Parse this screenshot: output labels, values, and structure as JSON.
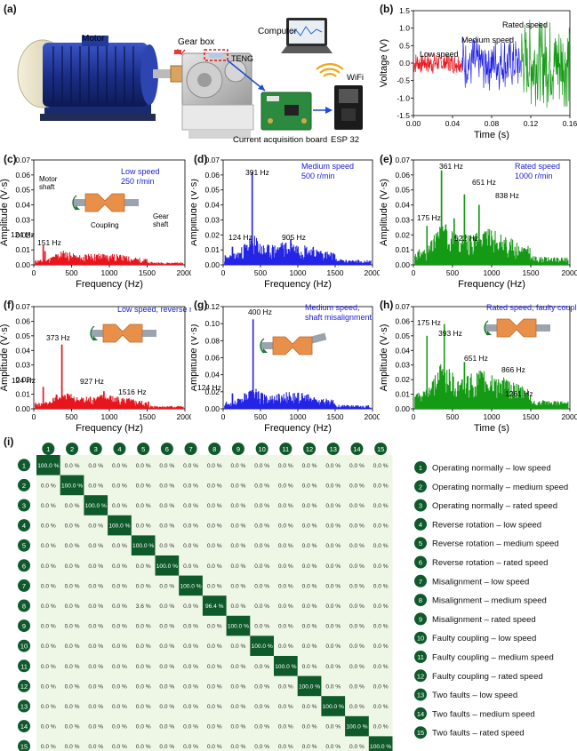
{
  "panel_labels": {
    "a": "(a)",
    "b": "(b)",
    "c": "(c)",
    "d": "(d)",
    "e": "(e)",
    "f": "(f)",
    "g": "(g)",
    "h": "(h)",
    "i": "(i)"
  },
  "setup": {
    "motor": "Motor",
    "gearbox": "Gear box",
    "teng": "TENG",
    "computer": "Computer",
    "wifi": "WiFi",
    "board": "Current acquisition board",
    "esp": "ESP 32"
  },
  "colors": {
    "low": "#e8151d",
    "medium": "#2424e6",
    "rated": "#159a15",
    "matrix_dark": "#0f5a2b",
    "matrix_light": "#eef7e6",
    "title_blue": "#1b1bd8"
  },
  "coupling_labels": {
    "motor_shaft": "Motor\nshaft",
    "gear_shaft": "Gear\nshaft",
    "coupling": "Coupling"
  },
  "chart_data": [
    {
      "id": "b",
      "type": "line",
      "xlabel": "Time (s)",
      "ylabel": "Voltage (V)",
      "xlim": [
        0,
        0.16
      ],
      "ylim": [
        -1.6,
        1.6
      ],
      "xticks": [
        "0.00",
        "0.04",
        "0.08",
        "0.12",
        "0.16"
      ],
      "yticks": [
        "1.5",
        "1.0",
        "0.5",
        "0.0",
        "-0.5",
        "-1.0",
        "-1.5"
      ],
      "series": [
        {
          "name": "Low speed",
          "x_range": [
            0.0,
            0.05
          ],
          "amplitude": 0.35,
          "color": "#e8151d"
        },
        {
          "name": "Medium speed",
          "x_range": [
            0.05,
            0.11
          ],
          "amplitude": 0.9,
          "color": "#2424e6"
        },
        {
          "name": "Rated speed",
          "x_range": [
            0.11,
            0.16
          ],
          "amplitude": 1.4,
          "color": "#159a15"
        }
      ]
    },
    {
      "id": "c",
      "type": "line",
      "xlabel": "Frequency (Hz)",
      "ylabel": "Amplitude (V·s)",
      "xlim": [
        0,
        2000
      ],
      "ylim": [
        0,
        0.07
      ],
      "xticks": [
        "0",
        "500",
        "1000",
        "1500",
        "2000"
      ],
      "yticks": [
        "0.07",
        "0.06",
        "0.05",
        "0.04",
        "0.03",
        "0.02",
        "0.01",
        "0.00"
      ],
      "title": "Low speed\n250 r/min",
      "title_color": "#1b1bd8",
      "color": "#e8151d",
      "peaks": [
        {
          "x": 124,
          "y": 0.013,
          "label": "124 Hz"
        },
        {
          "x": 151,
          "y": 0.009,
          "label": "151 Hz"
        }
      ],
      "baseline": 0.004
    },
    {
      "id": "d",
      "type": "line",
      "xlabel": "Frequency (Hz)",
      "ylabel": "Amplitude (V·s)",
      "xlim": [
        0,
        2000
      ],
      "ylim": [
        0,
        0.07
      ],
      "xticks": [
        "0",
        "500",
        "1000",
        "1500",
        "2000"
      ],
      "yticks": [
        "0.07",
        "0.06",
        "0.05",
        "0.04",
        "0.03",
        "0.02",
        "0.01",
        "0.00"
      ],
      "title": "Medium speed\n500 r/min",
      "title_color": "#1b1bd8",
      "color": "#2424e6",
      "peaks": [
        {
          "x": 124,
          "y": 0.012,
          "label": "124 Hz"
        },
        {
          "x": 391,
          "y": 0.062,
          "label": "391 Hz"
        },
        {
          "x": 905,
          "y": 0.017,
          "label": "905 Hz"
        }
      ],
      "baseline": 0.008
    },
    {
      "id": "e",
      "type": "line",
      "xlabel": "Frequency (Hz)",
      "ylabel": "Amplitude (V·s)",
      "xlim": [
        0,
        2000
      ],
      "ylim": [
        0,
        0.07
      ],
      "xticks": [
        "0",
        "500",
        "1000",
        "1500",
        "2000"
      ],
      "yticks": [
        "0.07",
        "0.06",
        "0.05",
        "0.04",
        "0.03",
        "0.02",
        "0.01",
        "0.00"
      ],
      "title": "Rated speed\n1000 r/min",
      "title_color": "#1b1bd8",
      "color": "#159a15",
      "peaks": [
        {
          "x": 175,
          "y": 0.026,
          "label": "175 Hz"
        },
        {
          "x": 361,
          "y": 0.063,
          "label": "361 Hz"
        },
        {
          "x": 522,
          "y": 0.031,
          "label": "522 Hz"
        },
        {
          "x": 651,
          "y": 0.047,
          "label": "651 Hz"
        },
        {
          "x": 838,
          "y": 0.04,
          "label": "838 Hz"
        }
      ],
      "baseline": 0.012
    },
    {
      "id": "f",
      "type": "line",
      "xlabel": "Frequency (Hz)",
      "ylabel": "Amplitude (V·s)",
      "xlim": [
        0,
        2000
      ],
      "ylim": [
        0,
        0.07
      ],
      "xticks": [
        "0",
        "500",
        "1000",
        "1500",
        "2000"
      ],
      "yticks": [
        "0.07",
        "0.06",
        "0.05",
        "0.04",
        "0.03",
        "0.02",
        "0.01",
        "0.00"
      ],
      "title": "Low speed, reverse rotation",
      "title_color": "#1b1bd8",
      "color": "#e8151d",
      "peaks": [
        {
          "x": 124,
          "y": 0.015,
          "label": "124 Hz"
        },
        {
          "x": 373,
          "y": 0.044,
          "label": "373 Hz"
        },
        {
          "x": 927,
          "y": 0.012,
          "label": "927 Hz"
        },
        {
          "x": 1516,
          "y": 0.005,
          "label": "1516 Hz"
        }
      ],
      "baseline": 0.005
    },
    {
      "id": "g",
      "type": "line",
      "xlabel": "Frequency (Hz)",
      "ylabel": "Amplitude (V·s)",
      "xlim": [
        0,
        2000
      ],
      "ylim": [
        0,
        0.12
      ],
      "xticks": [
        "0",
        "500",
        "1000",
        "1500",
        "2000"
      ],
      "yticks": [
        "0.12",
        "0.10",
        "0.08",
        "0.06",
        "0.04",
        "0.02",
        "0.00"
      ],
      "title": "Medium speed,\nshaft misalignment",
      "title_color": "#1b1bd8",
      "color": "#2424e6",
      "peaks": [
        {
          "x": 124,
          "y": 0.018,
          "label": "124 Hz"
        },
        {
          "x": 400,
          "y": 0.105,
          "label": "400 Hz"
        }
      ],
      "baseline": 0.01
    },
    {
      "id": "h",
      "type": "line",
      "xlabel": "Time (s)",
      "ylabel": "Amplitude (V·s)",
      "xlim": [
        0,
        2000
      ],
      "ylim": [
        0,
        0.07
      ],
      "xticks": [
        "0",
        "500",
        "1000",
        "1500",
        "2000"
      ],
      "yticks": [
        "0.07",
        "0.06",
        "0.05",
        "0.04",
        "0.03",
        "0.02",
        "0.01",
        "0.00"
      ],
      "title": "Rated speed, faulty coupling",
      "title_color": "#1b1bd8",
      "color": "#159a15",
      "peaks": [
        {
          "x": 175,
          "y": 0.05,
          "label": "175 Hz"
        },
        {
          "x": 393,
          "y": 0.058,
          "label": "393 Hz"
        },
        {
          "x": 651,
          "y": 0.032,
          "label": "651 Hz"
        },
        {
          "x": 866,
          "y": 0.025,
          "label": "866 Hz"
        },
        {
          "x": 1261,
          "y": 0.007,
          "label": "1261 Hz"
        }
      ],
      "baseline": 0.013
    },
    {
      "id": "i",
      "type": "heatmap",
      "labels": [
        "1",
        "2",
        "3",
        "4",
        "5",
        "6",
        "7",
        "8",
        "9",
        "10",
        "11",
        "12",
        "13",
        "14",
        "15"
      ],
      "matrix": [
        [
          "100.0 %",
          "0.0 %",
          "0.0 %",
          "0.0 %",
          "0.0 %",
          "0.0 %",
          "0.0 %",
          "0.0 %",
          "0.0 %",
          "0.0 %",
          "0.0 %",
          "0.0 %",
          "0.0 %",
          "0.0 %",
          "0.0 %"
        ],
        [
          "0.0 %",
          "100.0 %",
          "0.0 %",
          "0.0 %",
          "0.0 %",
          "0.0 %",
          "0.0 %",
          "0.0 %",
          "0.0 %",
          "0.0 %",
          "0.0 %",
          "0.0 %",
          "0.0 %",
          "0.0 %",
          "0.0 %"
        ],
        [
          "0.0 %",
          "0.0 %",
          "100.0 %",
          "0.0 %",
          "0.0 %",
          "0.0 %",
          "0.0 %",
          "0.0 %",
          "0.0 %",
          "0.0 %",
          "0.0 %",
          "0.0 %",
          "0.0 %",
          "0.0 %",
          "0.0 %"
        ],
        [
          "0.0 %",
          "0.0 %",
          "0.0 %",
          "100.0 %",
          "0.0 %",
          "0.0 %",
          "0.0 %",
          "0.0 %",
          "0.0 %",
          "0.0 %",
          "0.0 %",
          "0.0 %",
          "0.0 %",
          "0.0 %",
          "0.0 %"
        ],
        [
          "0.0 %",
          "0.0 %",
          "0.0 %",
          "0.0 %",
          "100.0 %",
          "0.0 %",
          "0.0 %",
          "0.0 %",
          "0.0 %",
          "0.0 %",
          "0.0 %",
          "0.0 %",
          "0.0 %",
          "0.0 %",
          "0.0 %"
        ],
        [
          "0.0 %",
          "0.0 %",
          "0.0 %",
          "0.0 %",
          "0.0 %",
          "100.0 %",
          "0.0 %",
          "0.0 %",
          "0.0 %",
          "0.0 %",
          "0.0 %",
          "0.0 %",
          "0.0 %",
          "0.0 %",
          "0.0 %"
        ],
        [
          "0.0 %",
          "0.0 %",
          "0.0 %",
          "0.0 %",
          "0.0 %",
          "0.0 %",
          "100.0 %",
          "0.0 %",
          "0.0 %",
          "0.0 %",
          "0.0 %",
          "0.0 %",
          "0.0 %",
          "0.0 %",
          "0.0 %"
        ],
        [
          "0.0 %",
          "0.0 %",
          "0.0 %",
          "0.0 %",
          "3.6 %",
          "0.0 %",
          "0.0 %",
          "96.4 %",
          "0.0 %",
          "0.0 %",
          "0.0 %",
          "0.0 %",
          "0.0 %",
          "0.0 %",
          "0.0 %"
        ],
        [
          "0.0 %",
          "0.0 %",
          "0.0 %",
          "0.0 %",
          "0.0 %",
          "0.0 %",
          "0.0 %",
          "0.0 %",
          "100.0 %",
          "0.0 %",
          "0.0 %",
          "0.0 %",
          "0.0 %",
          "0.0 %",
          "0.0 %"
        ],
        [
          "0.0 %",
          "0.0 %",
          "0.0 %",
          "0.0 %",
          "0.0 %",
          "0.0 %",
          "0.0 %",
          "0.0 %",
          "0.0 %",
          "100.0 %",
          "0.0 %",
          "0.0 %",
          "0.0 %",
          "0.0 %",
          "0.0 %"
        ],
        [
          "0.0 %",
          "0.0 %",
          "0.0 %",
          "0.0 %",
          "0.0 %",
          "0.0 %",
          "0.0 %",
          "0.0 %",
          "0.0 %",
          "0.0 %",
          "100.0 %",
          "0.0 %",
          "0.0 %",
          "0.0 %",
          "0.0 %"
        ],
        [
          "0.0 %",
          "0.0 %",
          "0.0 %",
          "0.0 %",
          "0.0 %",
          "0.0 %",
          "0.0 %",
          "0.0 %",
          "0.0 %",
          "0.0 %",
          "0.0 %",
          "100.0 %",
          "0.0 %",
          "0.0 %",
          "0.0 %"
        ],
        [
          "0.0 %",
          "0.0 %",
          "0.0 %",
          "0.0 %",
          "0.0 %",
          "0.0 %",
          "0.0 %",
          "0.0 %",
          "0.0 %",
          "0.0 %",
          "0.0 %",
          "0.0 %",
          "100.0 %",
          "0.0 %",
          "0.0 %"
        ],
        [
          "0.0 %",
          "0.0 %",
          "0.0 %",
          "0.0 %",
          "0.0 %",
          "0.0 %",
          "0.0 %",
          "0.0 %",
          "0.0 %",
          "0.0 %",
          "0.0 %",
          "0.0 %",
          "0.0 %",
          "100.0 %",
          "0.0 %"
        ],
        [
          "0.0 %",
          "0.0 %",
          "0.0 %",
          "0.0 %",
          "0.0 %",
          "0.0 %",
          "0.0 %",
          "0.0 %",
          "0.0 %",
          "0.0 %",
          "0.0 %",
          "0.0 %",
          "0.0 %",
          "0.0 %",
          "100.0 %"
        ]
      ],
      "legend": [
        "Operating normally – low speed",
        "Operating normally – medium speed",
        "Operating normally – rated speed",
        "Reverse rotation – low speed",
        "Reverse rotation – medium speed",
        "Reverse rotation – rated speed",
        "Misalignment – low speed",
        "Misalignment – medium speed",
        "Misalignment – rated speed",
        "Faulty coupling – low speed",
        "Faulty coupling – medium speed",
        "Faulty coupling – rated speed",
        "Two faults – low speed",
        "Two faults – medium speed",
        "Two faults – rated speed"
      ]
    }
  ]
}
